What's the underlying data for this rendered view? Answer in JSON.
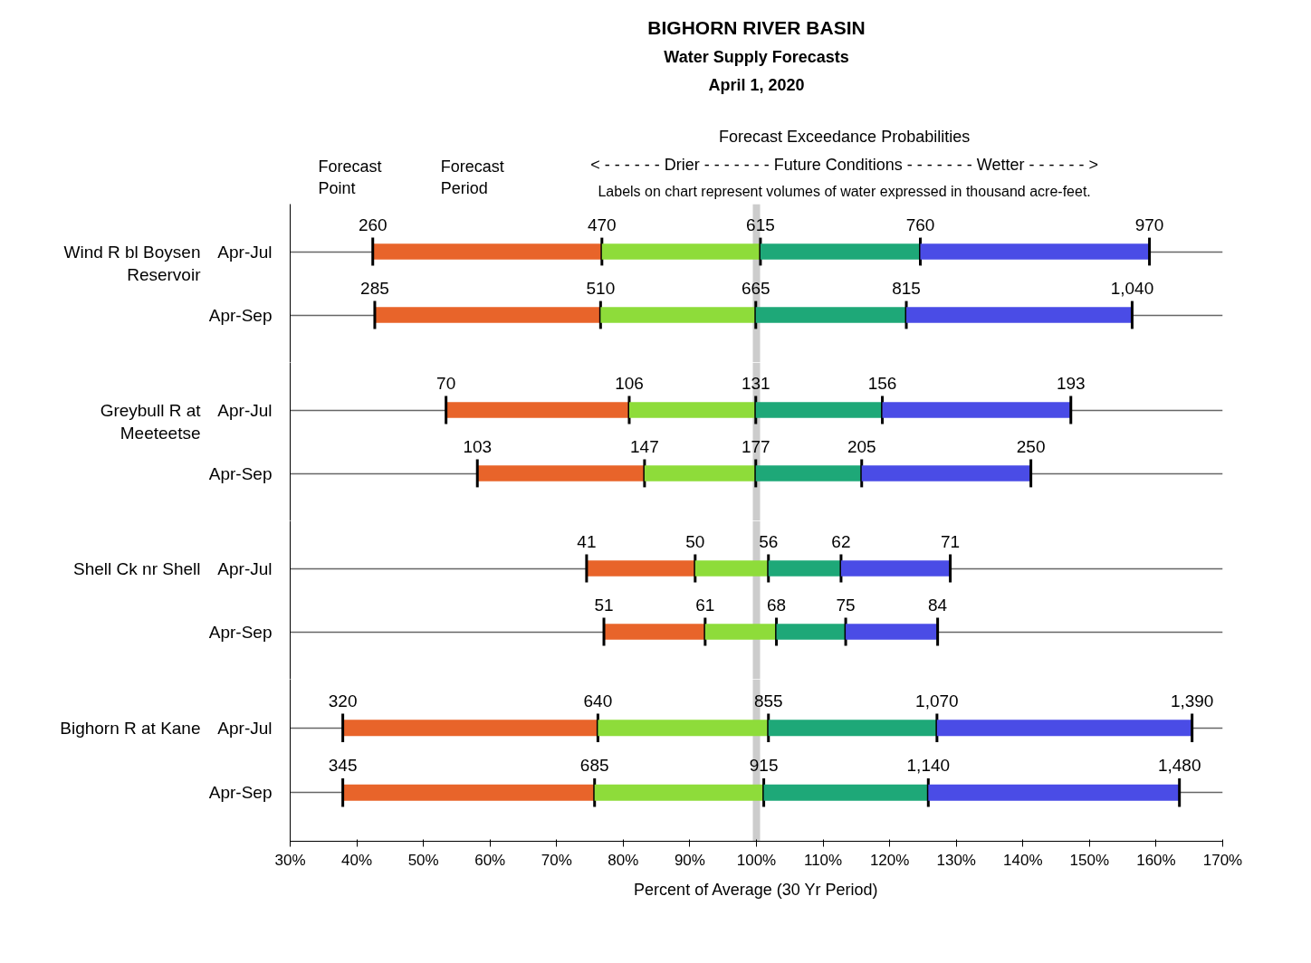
{
  "chart_data": [
    {
      "type": "bar",
      "orientation": "horizontal",
      "title": "BIGHORN RIVER BASIN",
      "subtitle": "Water Supply Forecasts",
      "annotations": [
        "April 1, 2020",
        "Forecast Exceedance Probabilities",
        "< - - - - - - Drier - - - - - - - Future Conditions - - - - - - - Wetter - - - - - - >",
        "Labels on chart represent volumes of water expressed in thousand acre-feet.",
        "Forecast Point",
        "Forecast Period",
        {
          "text": "260",
          "x": 42.4,
          "y": "Apr-Jul"
        },
        {
          "text": "470",
          "x": 76.8,
          "y": "Apr-Jul"
        },
        {
          "text": "615",
          "x": 100.6,
          "y": "Apr-Jul"
        },
        {
          "text": "760",
          "x": 124.6,
          "y": "Apr-Jul"
        },
        {
          "text": "970",
          "x": 159.0,
          "y": "Apr-Jul"
        },
        {
          "text": "285",
          "x": 42.7,
          "y": "Apr-Sep"
        },
        {
          "text": "510",
          "x": 76.6,
          "y": "Apr-Sep"
        },
        {
          "text": "665",
          "x": 99.9,
          "y": "Apr-Sep"
        },
        {
          "text": "815",
          "x": 122.5,
          "y": "Apr-Sep"
        },
        {
          "text": "1,040",
          "x": 156.4,
          "y": "Apr-Sep"
        }
      ],
      "ylabel": "Wind R bl Boysen Reservoir",
      "categories": [
        "Apr-Jul",
        "Apr-Sep"
      ],
      "series": [
        {
          "color": "#e8642a",
          "base": [
            42.4,
            42.7
          ],
          "values": [
            34.4,
            33.9
          ]
        },
        {
          "color": "#8edc3a",
          "base": [
            76.8,
            76.6
          ],
          "values": [
            23.8,
            23.3
          ]
        },
        {
          "color": "#1ea878",
          "base": [
            100.6,
            99.9
          ],
          "values": [
            24.0,
            22.6
          ]
        },
        {
          "color": "#4a4ce6",
          "base": [
            124.6,
            122.5
          ],
          "values": [
            34.4,
            33.9
          ]
        }
      ],
      "xlim": [
        30,
        170
      ],
      "grid": "y",
      "tick_labels": "y",
      "ref_lines": [
        {
          "axis": "x",
          "value": 100,
          "color": "#cccccc"
        }
      ]
    },
    {
      "type": "bar",
      "orientation": "horizontal",
      "ylabel": "Greybull R at Meeteetse",
      "categories": [
        "Apr-Jul",
        "Apr-Sep"
      ],
      "annotations": [
        {
          "text": "70",
          "x": 53.4,
          "y": "Apr-Jul"
        },
        {
          "text": "106",
          "x": 80.9,
          "y": "Apr-Jul"
        },
        {
          "text": "131",
          "x": 99.9,
          "y": "Apr-Jul"
        },
        {
          "text": "156",
          "x": 118.9,
          "y": "Apr-Jul"
        },
        {
          "text": "193",
          "x": 147.2,
          "y": "Apr-Jul"
        },
        {
          "text": "103",
          "x": 58.1,
          "y": "Apr-Sep"
        },
        {
          "text": "147",
          "x": 83.2,
          "y": "Apr-Sep"
        },
        {
          "text": "177",
          "x": 99.9,
          "y": "Apr-Sep"
        },
        {
          "text": "205",
          "x": 115.8,
          "y": "Apr-Sep"
        },
        {
          "text": "250",
          "x": 141.2,
          "y": "Apr-Sep"
        }
      ],
      "series": [
        {
          "color": "#e8642a",
          "base": [
            53.4,
            58.1
          ],
          "values": [
            27.5,
            25.1
          ]
        },
        {
          "color": "#8edc3a",
          "base": [
            80.9,
            83.2
          ],
          "values": [
            19.0,
            16.7
          ]
        },
        {
          "color": "#1ea878",
          "base": [
            99.9,
            99.9
          ],
          "values": [
            19.0,
            15.9
          ]
        },
        {
          "color": "#4a4ce6",
          "base": [
            118.9,
            115.8
          ],
          "values": [
            28.3,
            25.4
          ]
        }
      ],
      "xlim": [
        30,
        170
      ],
      "grid": "y",
      "tick_labels": "y",
      "ref_lines": [
        {
          "axis": "x",
          "value": 100,
          "color": "#cccccc"
        }
      ]
    },
    {
      "type": "bar",
      "orientation": "horizontal",
      "ylabel": "Shell Ck nr Shell",
      "categories": [
        "Apr-Jul",
        "Apr-Sep"
      ],
      "annotations": [
        {
          "text": "41",
          "x": 74.5,
          "y": "Apr-Jul"
        },
        {
          "text": "50",
          "x": 90.8,
          "y": "Apr-Jul"
        },
        {
          "text": "56",
          "x": 101.8,
          "y": "Apr-Jul"
        },
        {
          "text": "62",
          "x": 112.7,
          "y": "Apr-Jul"
        },
        {
          "text": "71",
          "x": 129.1,
          "y": "Apr-Jul"
        },
        {
          "text": "51",
          "x": 77.1,
          "y": "Apr-Sep"
        },
        {
          "text": "61",
          "x": 92.3,
          "y": "Apr-Sep"
        },
        {
          "text": "68",
          "x": 103.0,
          "y": "Apr-Sep"
        },
        {
          "text": "75",
          "x": 113.4,
          "y": "Apr-Sep"
        },
        {
          "text": "84",
          "x": 127.2,
          "y": "Apr-Sep"
        }
      ],
      "series": [
        {
          "color": "#e8642a",
          "base": [
            74.5,
            77.1
          ],
          "values": [
            16.3,
            15.2
          ]
        },
        {
          "color": "#8edc3a",
          "base": [
            90.8,
            92.3
          ],
          "values": [
            11.0,
            10.7
          ]
        },
        {
          "color": "#1ea878",
          "base": [
            101.8,
            103.0
          ],
          "values": [
            10.9,
            10.4
          ]
        },
        {
          "color": "#4a4ce6",
          "base": [
            112.7,
            113.4
          ],
          "values": [
            16.4,
            13.8
          ]
        }
      ],
      "xlim": [
        30,
        170
      ],
      "grid": "y",
      "tick_labels": "y",
      "ref_lines": [
        {
          "axis": "x",
          "value": 100,
          "color": "#cccccc"
        }
      ]
    },
    {
      "type": "bar",
      "orientation": "horizontal",
      "ylabel": "Bighorn R at Kane",
      "xlabel": "Percent of Average (30 Yr Period)",
      "categories": [
        "Apr-Jul",
        "Apr-Sep"
      ],
      "annotations": [
        {
          "text": "320",
          "x": 37.9,
          "y": "Apr-Jul"
        },
        {
          "text": "640",
          "x": 76.2,
          "y": "Apr-Jul"
        },
        {
          "text": "855",
          "x": 101.8,
          "y": "Apr-Jul"
        },
        {
          "text": "1,070",
          "x": 127.1,
          "y": "Apr-Jul"
        },
        {
          "text": "1,390",
          "x": 165.4,
          "y": "Apr-Jul"
        },
        {
          "text": "345",
          "x": 37.9,
          "y": "Apr-Sep"
        },
        {
          "text": "685",
          "x": 75.7,
          "y": "Apr-Sep"
        },
        {
          "text": "915",
          "x": 101.1,
          "y": "Apr-Sep"
        },
        {
          "text": "1,140",
          "x": 125.8,
          "y": "Apr-Sep"
        },
        {
          "text": "1,480",
          "x": 163.5,
          "y": "Apr-Sep"
        }
      ],
      "series": [
        {
          "color": "#e8642a",
          "base": [
            37.9,
            37.9
          ],
          "values": [
            38.3,
            37.8
          ]
        },
        {
          "color": "#8edc3a",
          "base": [
            76.2,
            75.7
          ],
          "values": [
            25.6,
            25.4
          ]
        },
        {
          "color": "#1ea878",
          "base": [
            101.8,
            101.1
          ],
          "values": [
            25.3,
            24.7
          ]
        },
        {
          "color": "#4a4ce6",
          "base": [
            127.1,
            125.8
          ],
          "values": [
            38.3,
            37.7
          ]
        }
      ],
      "xlim": [
        30,
        170
      ],
      "xticks": [
        {
          "value": 30,
          "label": "30%"
        },
        {
          "value": 40,
          "label": "40%"
        },
        {
          "value": 50,
          "label": "50%"
        },
        {
          "value": 60,
          "label": "60%"
        },
        {
          "value": 70,
          "label": "70%"
        },
        {
          "value": 80,
          "label": "80%"
        },
        {
          "value": 90,
          "label": "90%"
        },
        {
          "value": 100,
          "label": "100%"
        },
        {
          "value": 110,
          "label": "110%"
        },
        {
          "value": 120,
          "label": "120%"
        },
        {
          "value": 130,
          "label": "130%"
        },
        {
          "value": 140,
          "label": "140%"
        },
        {
          "value": 150,
          "label": "150%"
        },
        {
          "value": 160,
          "label": "160%"
        },
        {
          "value": 170,
          "label": "170%"
        }
      ],
      "grid": "y",
      "ref_lines": [
        {
          "axis": "x",
          "value": 100,
          "color": "#cccccc"
        }
      ]
    }
  ]
}
